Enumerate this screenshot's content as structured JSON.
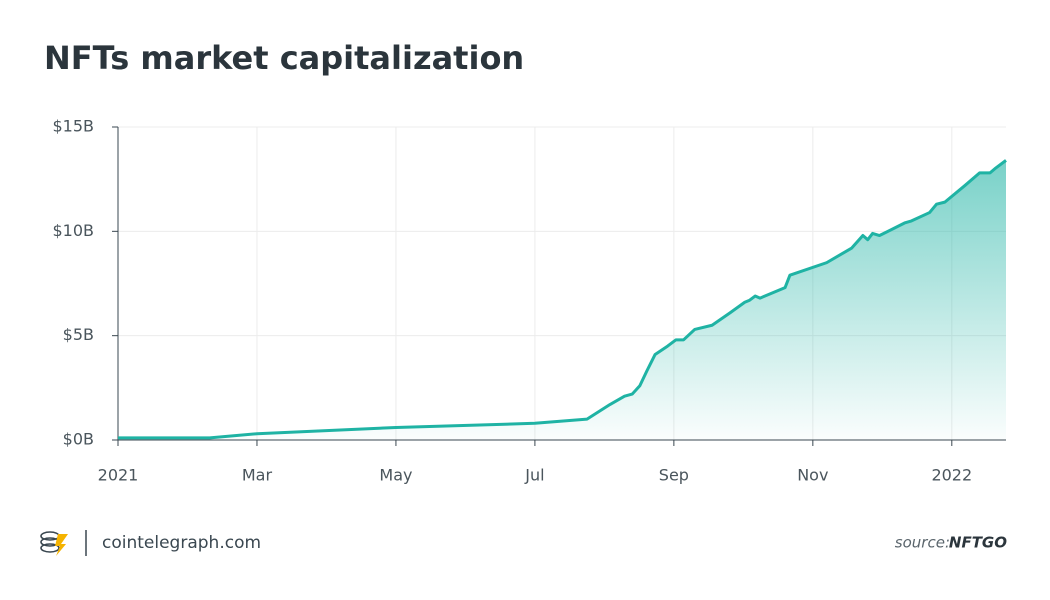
{
  "chart_data": {
    "type": "area",
    "title": "NFTs market capitalization",
    "x": [
      0,
      1.32,
      2,
      4,
      6,
      6.75,
      7.08,
      7.29,
      7.4,
      7.51,
      7.61,
      7.73,
      7.91,
      8.03,
      8.14,
      8.3,
      8.55,
      8.81,
      9.02,
      9.09,
      9.17,
      9.24,
      9.6,
      9.67,
      10.2,
      10.56,
      10.72,
      10.79,
      10.86,
      10.96,
      11.32,
      11.42,
      11.68,
      11.78,
      11.9,
      12.19,
      12.4,
      12.55,
      12.62,
      12.78
    ],
    "values": [
      0.1,
      0.1,
      0.3,
      0.6,
      0.8,
      1.0,
      1.7,
      2.1,
      2.2,
      2.6,
      3.3,
      4.1,
      4.5,
      4.8,
      4.8,
      5.3,
      5.5,
      6.1,
      6.6,
      6.7,
      6.9,
      6.8,
      7.3,
      7.9,
      8.5,
      9.2,
      9.8,
      9.6,
      9.9,
      9.8,
      10.4,
      10.5,
      10.9,
      11.3,
      11.4,
      12.2,
      12.8,
      12.8,
      13.0,
      13.4
    ],
    "color": "#1fb3a4",
    "xlim": [
      0,
      12.78
    ],
    "xticks": [
      {
        "value": 0,
        "label": "2021"
      },
      {
        "value": 2,
        "label": "Mar"
      },
      {
        "value": 4,
        "label": "May"
      },
      {
        "value": 6,
        "label": "Jul"
      },
      {
        "value": 8,
        "label": "Sep"
      },
      {
        "value": 10,
        "label": "Nov"
      },
      {
        "value": 12,
        "label": "2022"
      }
    ],
    "ylim": [
      0,
      15
    ],
    "yticks": [
      {
        "value": 0,
        "label": "$0B"
      },
      {
        "value": 5,
        "label": "$5B"
      },
      {
        "value": 10,
        "label": "$10B"
      },
      {
        "value": 15,
        "label": "$15B"
      }
    ],
    "grid": true
  },
  "footer": {
    "brand": "cointelegraph.com",
    "source_label": "source:",
    "source": "NFTGO"
  }
}
